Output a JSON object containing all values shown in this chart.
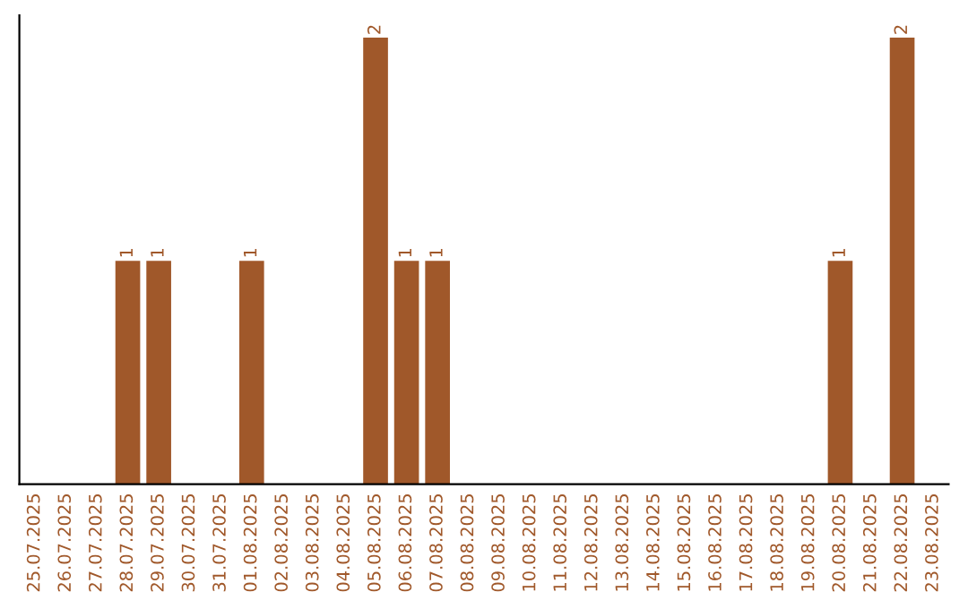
{
  "chart_data": {
    "type": "bar",
    "categories": [
      "25.07.2025",
      "26.07.2025",
      "27.07.2025",
      "28.07.2025",
      "29.07.2025",
      "30.07.2025",
      "31.07.2025",
      "01.08.2025",
      "02.08.2025",
      "03.08.2025",
      "04.08.2025",
      "05.08.2025",
      "06.08.2025",
      "07.08.2025",
      "08.08.2025",
      "09.08.2025",
      "10.08.2025",
      "11.08.2025",
      "12.08.2025",
      "13.08.2025",
      "14.08.2025",
      "15.08.2025",
      "16.08.2025",
      "17.08.2025",
      "18.08.2025",
      "19.08.2025",
      "20.08.2025",
      "21.08.2025",
      "22.08.2025",
      "23.08.2025"
    ],
    "values": [
      0,
      0,
      0,
      1,
      1,
      0,
      0,
      1,
      0,
      0,
      0,
      2,
      1,
      1,
      0,
      0,
      0,
      0,
      0,
      0,
      0,
      0,
      0,
      0,
      0,
      0,
      1,
      0,
      2,
      0
    ],
    "value_labels": [
      null,
      null,
      null,
      "1",
      "1",
      null,
      null,
      "1",
      null,
      null,
      null,
      "2",
      "1",
      "1",
      null,
      null,
      null,
      null,
      null,
      null,
      null,
      null,
      null,
      null,
      null,
      null,
      "1",
      null,
      "2",
      null
    ],
    "color": "#a0582a",
    "tick_labels": "x",
    "grid": false,
    "legend": false
  }
}
